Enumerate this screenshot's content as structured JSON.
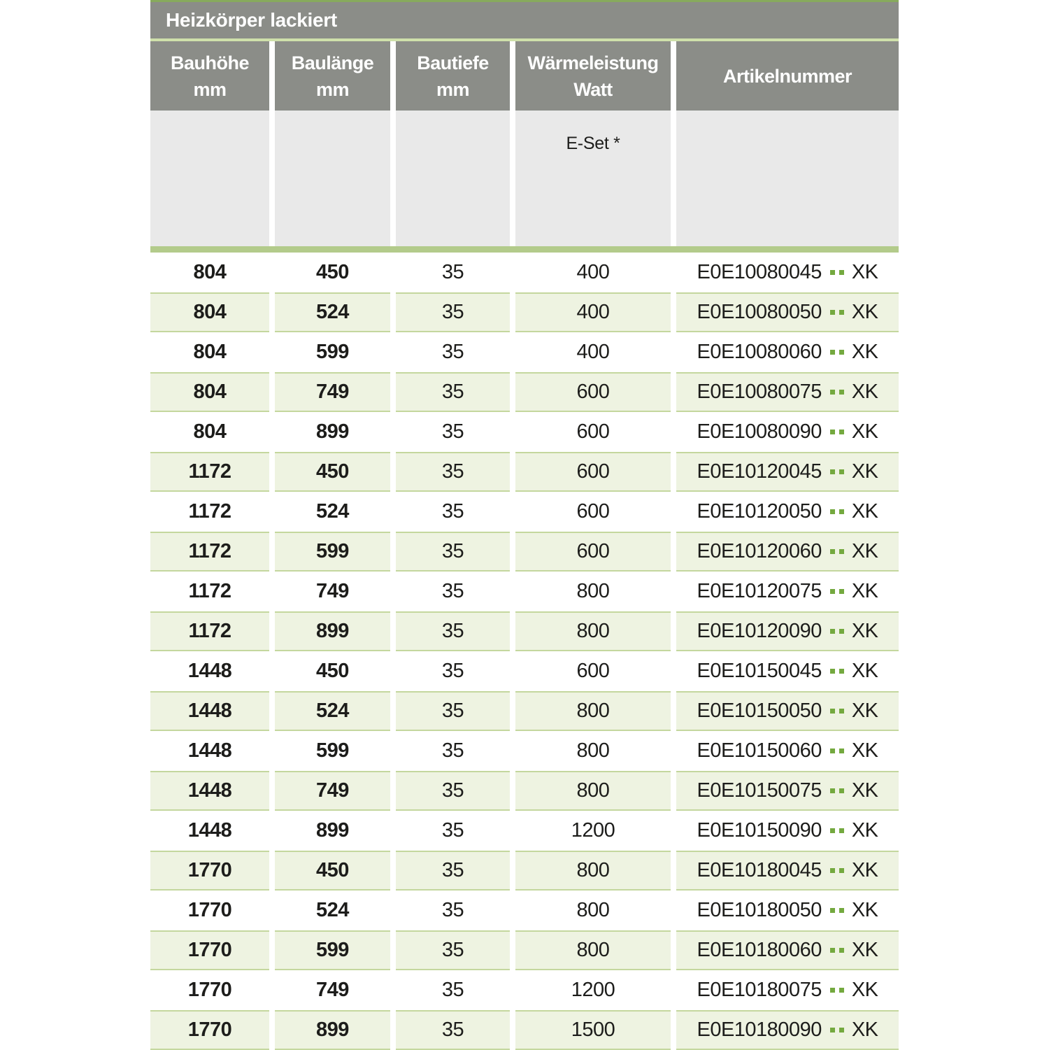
{
  "table": {
    "title": "Heizkörper lackiert",
    "columns": [
      {
        "label": "Bauhöhe",
        "unit": "mm"
      },
      {
        "label": "Baulänge",
        "unit": "mm"
      },
      {
        "label": "Bautiefe",
        "unit": "mm"
      },
      {
        "label": "Wärmeleistung",
        "unit": "Watt"
      },
      {
        "label": "Artikelnummer",
        "unit": ""
      }
    ],
    "subheader_note": "E-Set *",
    "article_dot_separator": "..",
    "rows": [
      {
        "bauhoehe": "804",
        "baulaenge": "450",
        "bautiefe": "35",
        "watt": "400",
        "artikel": "E0E10080045",
        "artikel_suffix": "XK"
      },
      {
        "bauhoehe": "804",
        "baulaenge": "524",
        "bautiefe": "35",
        "watt": "400",
        "artikel": "E0E10080050",
        "artikel_suffix": "XK"
      },
      {
        "bauhoehe": "804",
        "baulaenge": "599",
        "bautiefe": "35",
        "watt": "400",
        "artikel": "E0E10080060",
        "artikel_suffix": "XK"
      },
      {
        "bauhoehe": "804",
        "baulaenge": "749",
        "bautiefe": "35",
        "watt": "600",
        "artikel": "E0E10080075",
        "artikel_suffix": "XK"
      },
      {
        "bauhoehe": "804",
        "baulaenge": "899",
        "bautiefe": "35",
        "watt": "600",
        "artikel": "E0E10080090",
        "artikel_suffix": "XK"
      },
      {
        "bauhoehe": "1172",
        "baulaenge": "450",
        "bautiefe": "35",
        "watt": "600",
        "artikel": "E0E10120045",
        "artikel_suffix": "XK"
      },
      {
        "bauhoehe": "1172",
        "baulaenge": "524",
        "bautiefe": "35",
        "watt": "600",
        "artikel": "E0E10120050",
        "artikel_suffix": "XK"
      },
      {
        "bauhoehe": "1172",
        "baulaenge": "599",
        "bautiefe": "35",
        "watt": "600",
        "artikel": "E0E10120060",
        "artikel_suffix": "XK"
      },
      {
        "bauhoehe": "1172",
        "baulaenge": "749",
        "bautiefe": "35",
        "watt": "800",
        "artikel": "E0E10120075",
        "artikel_suffix": "XK"
      },
      {
        "bauhoehe": "1172",
        "baulaenge": "899",
        "bautiefe": "35",
        "watt": "800",
        "artikel": "E0E10120090",
        "artikel_suffix": "XK"
      },
      {
        "bauhoehe": "1448",
        "baulaenge": "450",
        "bautiefe": "35",
        "watt": "600",
        "artikel": "E0E10150045",
        "artikel_suffix": "XK"
      },
      {
        "bauhoehe": "1448",
        "baulaenge": "524",
        "bautiefe": "35",
        "watt": "800",
        "artikel": "E0E10150050",
        "artikel_suffix": "XK"
      },
      {
        "bauhoehe": "1448",
        "baulaenge": "599",
        "bautiefe": "35",
        "watt": "800",
        "artikel": "E0E10150060",
        "artikel_suffix": "XK"
      },
      {
        "bauhoehe": "1448",
        "baulaenge": "749",
        "bautiefe": "35",
        "watt": "800",
        "artikel": "E0E10150075",
        "artikel_suffix": "XK"
      },
      {
        "bauhoehe": "1448",
        "baulaenge": "899",
        "bautiefe": "35",
        "watt": "1200",
        "artikel": "E0E10150090",
        "artikel_suffix": "XK"
      },
      {
        "bauhoehe": "1770",
        "baulaenge": "450",
        "bautiefe": "35",
        "watt": "800",
        "artikel": "E0E10180045",
        "artikel_suffix": "XK"
      },
      {
        "bauhoehe": "1770",
        "baulaenge": "524",
        "bautiefe": "35",
        "watt": "800",
        "artikel": "E0E10180050",
        "artikel_suffix": "XK"
      },
      {
        "bauhoehe": "1770",
        "baulaenge": "599",
        "bautiefe": "35",
        "watt": "800",
        "artikel": "E0E10180060",
        "artikel_suffix": "XK"
      },
      {
        "bauhoehe": "1770",
        "baulaenge": "749",
        "bautiefe": "35",
        "watt": "1200",
        "artikel": "E0E10180075",
        "artikel_suffix": "XK"
      },
      {
        "bauhoehe": "1770",
        "baulaenge": "899",
        "bautiefe": "35",
        "watt": "1500",
        "artikel": "E0E10180090",
        "artikel_suffix": "XK"
      }
    ]
  },
  "colors": {
    "header-gray": "#8b8d88",
    "top-line-green": "#87aa5d",
    "title-sep-green": "#cfe0ab",
    "divider-green": "#b3cb8b",
    "row-border-green": "#c4d79e",
    "row-alt-bg": "#eef3e1",
    "subheader-bg": "#e9e9e9",
    "dot-green": "#74a93f",
    "text-dark": "#1d1d1b"
  }
}
